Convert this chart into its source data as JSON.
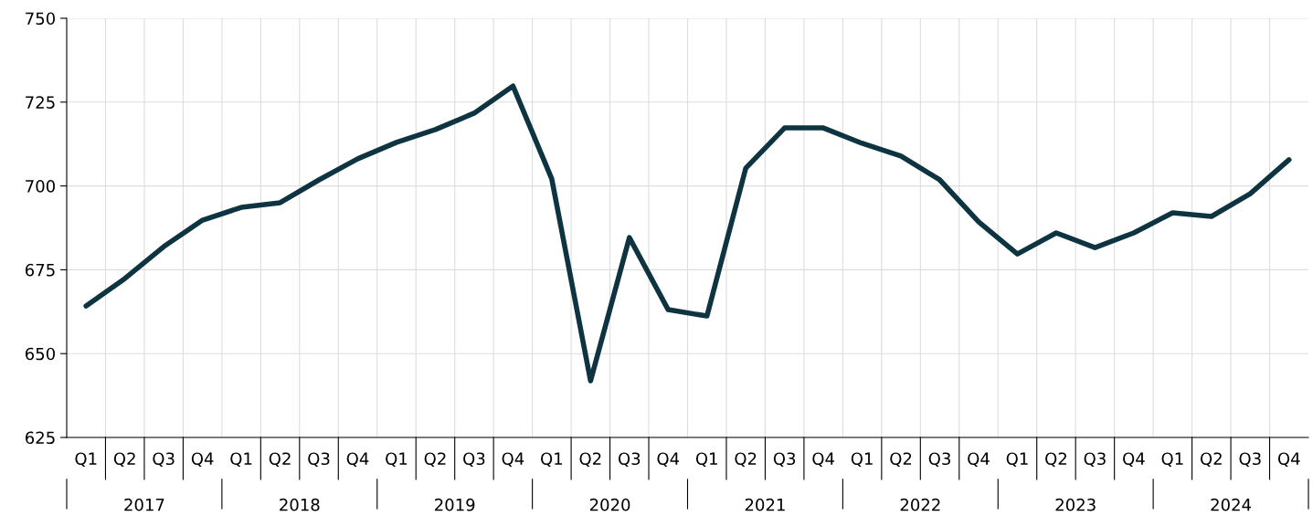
{
  "chart_data": {
    "type": "line",
    "categories": [
      "Q1",
      "Q2",
      "Q3",
      "Q4",
      "Q1",
      "Q2",
      "Q3",
      "Q4",
      "Q1",
      "Q2",
      "Q3",
      "Q4",
      "Q1",
      "Q2",
      "Q3",
      "Q4",
      "Q1",
      "Q2",
      "Q3",
      "Q4",
      "Q1",
      "Q2",
      "Q3",
      "Q4",
      "Q1",
      "Q2",
      "Q3",
      "Q4",
      "Q1",
      "Q2",
      "Q3",
      "Q4"
    ],
    "series": [
      {
        "color": "#0d3440",
        "values": [
          664.2,
          672.4,
          681.9,
          689.8,
          693.6,
          695.0,
          701.8,
          708.1,
          713.0,
          716.8,
          721.7,
          729.8,
          702.1,
          641.9,
          684.6,
          663.1,
          661.2,
          705.3,
          717.3,
          717.3,
          712.7,
          708.9,
          701.8,
          689.3,
          679.7,
          686.0,
          681.6,
          686.0,
          692.0,
          690.9,
          697.7,
          707.8
        ]
      }
    ],
    "annotations": [
      "2017",
      "2018",
      "2019",
      "2020",
      "2021",
      "2022",
      "2023",
      "2024"
    ],
    "ylim": [
      625,
      750
    ],
    "yticks": [
      625,
      650,
      675,
      700,
      725,
      750
    ],
    "grid": true,
    "marker": "none",
    "line_style": "solid",
    "legend": false
  }
}
